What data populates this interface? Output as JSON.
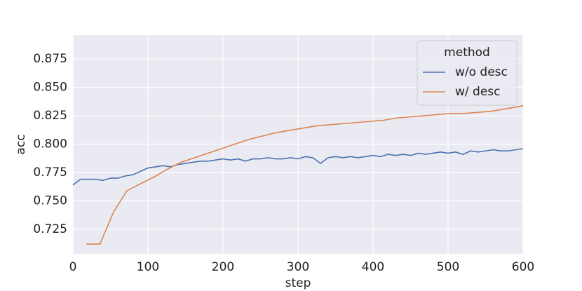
{
  "chart_data": {
    "type": "line",
    "x_label": "step",
    "y_label": "acc",
    "xlim": [
      0,
      600
    ],
    "xticks": [
      0,
      100,
      200,
      300,
      400,
      500,
      600
    ],
    "ylim": [
      0.7034,
      0.896
    ],
    "yticks": [
      0.725,
      {
        "value": 0.75,
        "label": "0.750"
      },
      0.775,
      {
        "value": 0.8,
        "label": "0.800"
      },
      0.825,
      {
        "value": 0.85,
        "label": "0.850"
      },
      0.875
    ],
    "grid": true,
    "legend": {
      "title": "method",
      "position": "upper right"
    },
    "series": [
      {
        "name": "w/o desc",
        "color": "#4c72b0",
        "x": [
          0,
          10,
          20,
          30,
          40,
          50,
          60,
          70,
          80,
          90,
          100,
          110,
          120,
          130,
          140,
          150,
          160,
          170,
          180,
          190,
          200,
          210,
          220,
          230,
          240,
          250,
          260,
          270,
          280,
          290,
          300,
          310,
          320,
          330,
          340,
          350,
          360,
          370,
          380,
          390,
          400,
          410,
          420,
          430,
          440,
          450,
          460,
          470,
          480,
          490,
          500,
          510,
          520,
          530,
          540,
          550,
          560,
          570,
          580,
          590,
          600
        ],
        "values": [
          0.764,
          0.769,
          0.769,
          0.769,
          0.768,
          0.77,
          0.77,
          0.772,
          0.773,
          0.776,
          0.779,
          0.78,
          0.781,
          0.78,
          0.782,
          0.783,
          0.784,
          0.785,
          0.785,
          0.786,
          0.787,
          0.786,
          0.787,
          0.785,
          0.787,
          0.787,
          0.788,
          0.787,
          0.787,
          0.788,
          0.787,
          0.789,
          0.788,
          0.783,
          0.788,
          0.789,
          0.788,
          0.789,
          0.788,
          0.789,
          0.79,
          0.789,
          0.791,
          0.79,
          0.791,
          0.79,
          0.792,
          0.791,
          0.792,
          0.793,
          0.792,
          0.793,
          0.791,
          0.794,
          0.793,
          0.794,
          0.795,
          0.794,
          0.794,
          0.795,
          0.796
        ]
      },
      {
        "name": "w/ desc",
        "color": "#dd8452",
        "x": [
          18,
          36,
          54,
          72,
          90,
          108,
          126,
          144,
          162,
          180,
          198,
          216,
          234,
          252,
          270,
          288,
          306,
          324,
          342,
          360,
          378,
          396,
          414,
          432,
          450,
          468,
          486,
          504,
          522,
          540,
          558,
          576,
          594,
          600
        ],
        "values": [
          0.712,
          0.712,
          0.74,
          0.759,
          0.765,
          0.771,
          0.778,
          0.784,
          0.788,
          0.792,
          0.796,
          0.8,
          0.804,
          0.807,
          0.81,
          0.812,
          0.814,
          0.816,
          0.817,
          0.818,
          0.819,
          0.82,
          0.821,
          0.823,
          0.824,
          0.825,
          0.826,
          0.827,
          0.827,
          0.828,
          0.829,
          0.831,
          0.833,
          0.834
        ]
      }
    ]
  }
}
